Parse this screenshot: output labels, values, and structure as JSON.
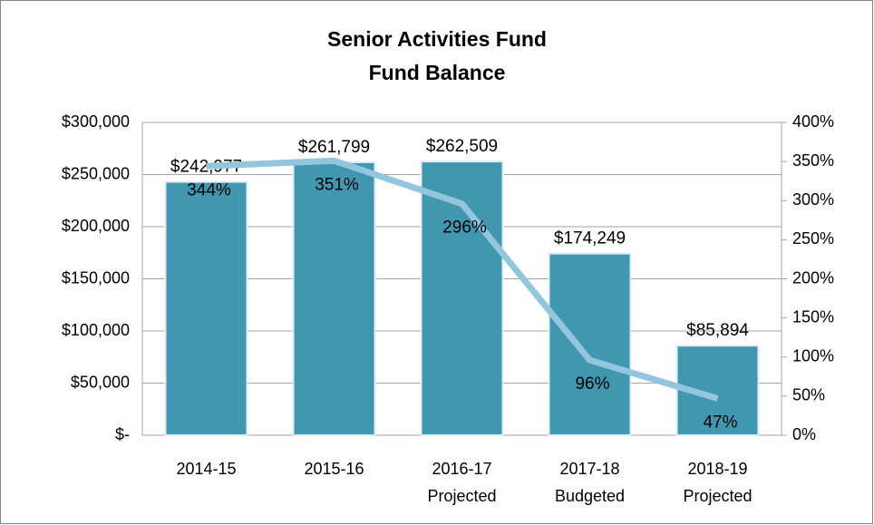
{
  "chart_data": {
    "type": "bar",
    "title": [
      "Senior Activities Fund",
      "Fund Balance"
    ],
    "categories": [
      [
        "2014-15"
      ],
      [
        "2015-16"
      ],
      [
        "2016-17",
        "Projected"
      ],
      [
        "2017-18",
        "Budgeted"
      ],
      [
        "2018-19",
        "Projected"
      ]
    ],
    "series": [
      {
        "type": "bar",
        "color": "#4196b0",
        "values": [
          242977,
          261799,
          262509,
          174249,
          85894
        ],
        "value_labels": [
          "$242,977",
          "$261,799",
          "$262,509",
          "$174,249",
          "$85,894"
        ]
      },
      {
        "type": "line",
        "axis": "y2",
        "color": "#93c6dc",
        "values": [
          344,
          351,
          296,
          96,
          47
        ],
        "value_labels": [
          "344%",
          "351%",
          "296%",
          "96%",
          "47%"
        ]
      }
    ],
    "ylim": [
      0,
      300000
    ],
    "yticks": [
      {
        "value": 0,
        "label": "$-"
      },
      {
        "value": 50000,
        "label": "$50,000"
      },
      {
        "value": 100000,
        "label": "$100,000"
      },
      {
        "value": 150000,
        "label": "$150,000"
      },
      {
        "value": 200000,
        "label": "$200,000"
      },
      {
        "value": 250000,
        "label": "$250,000"
      },
      {
        "value": 300000,
        "label": "$300,000"
      }
    ],
    "y2lim": [
      0,
      400
    ],
    "y2ticks": [
      {
        "value": 0,
        "label": "0%"
      },
      {
        "value": 50,
        "label": "50%"
      },
      {
        "value": 100,
        "label": "100%"
      },
      {
        "value": 150,
        "label": "150%"
      },
      {
        "value": 200,
        "label": "200%"
      },
      {
        "value": 250,
        "label": "250%"
      },
      {
        "value": 300,
        "label": "300%"
      },
      {
        "value": 350,
        "label": "350%"
      },
      {
        "value": 400,
        "label": "400%"
      }
    ],
    "grid": true
  }
}
